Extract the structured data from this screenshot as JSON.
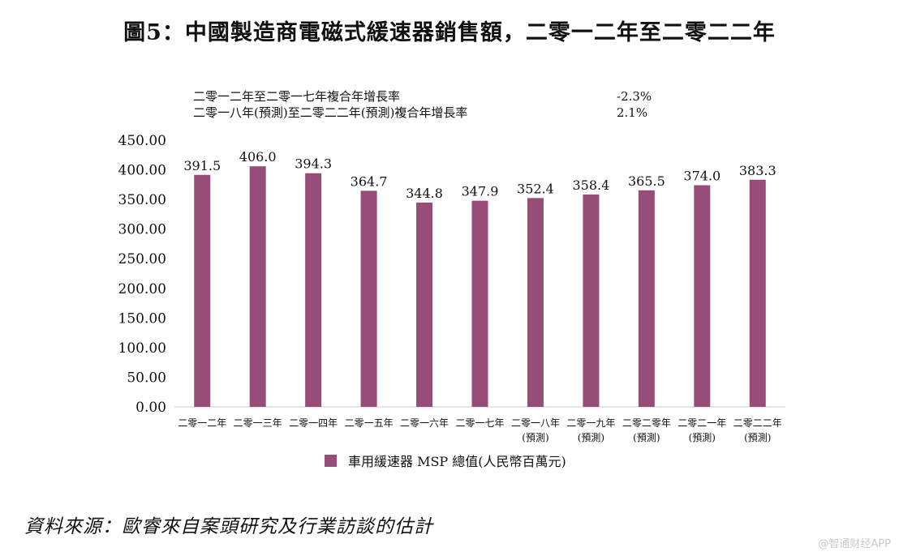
{
  "title": "圖5：中國製造商電磁式緩速器銷售額，二零一二年至二零二二年",
  "cagr": [
    {
      "label": "二零一二年至二零一七年複合年增長率",
      "value": "-2.3%"
    },
    {
      "label": "二零一八年(預測)至二零二二年(預測)複合年增長率",
      "value": "2.1%"
    }
  ],
  "source": "資料來源：歐睿來自案頭研究及行業訪談的估計",
  "watermark": "@智通财经APP",
  "colors": {
    "bar": "#964d77",
    "axis": "#cccccc"
  },
  "chart_data": {
    "type": "bar",
    "categories": [
      [
        "二零一二年"
      ],
      [
        "二零一三年"
      ],
      [
        "二零一四年"
      ],
      [
        "二零一五年"
      ],
      [
        "二零一六年"
      ],
      [
        "二零一七年"
      ],
      [
        "二零一八年",
        "(預測)"
      ],
      [
        "二零一九年",
        "(預測)"
      ],
      [
        "二零二零年",
        "(預測)"
      ],
      [
        "二零二一年",
        "(預測)"
      ],
      [
        "二零二二年",
        "(預測)"
      ]
    ],
    "series": [
      {
        "name": "車用緩速器 MSP 總值(人民幣百萬元)",
        "values": [
          391.5,
          406.0,
          394.3,
          364.7,
          344.8,
          347.9,
          352.4,
          358.4,
          365.5,
          374.0,
          383.3
        ],
        "value_labels": [
          "391.5",
          "406.0",
          "394.3",
          "364.7",
          "344.8",
          "347.9",
          "352.4",
          "358.4",
          "365.5",
          "374.0",
          "383.3"
        ]
      }
    ],
    "ylim": [
      0,
      450
    ],
    "yticks": [
      "0.00",
      "50.00",
      "100.00",
      "150.00",
      "200.00",
      "250.00",
      "300.00",
      "350.00",
      "400.00",
      "450.00"
    ],
    "grid": false,
    "legend": "bottom"
  }
}
